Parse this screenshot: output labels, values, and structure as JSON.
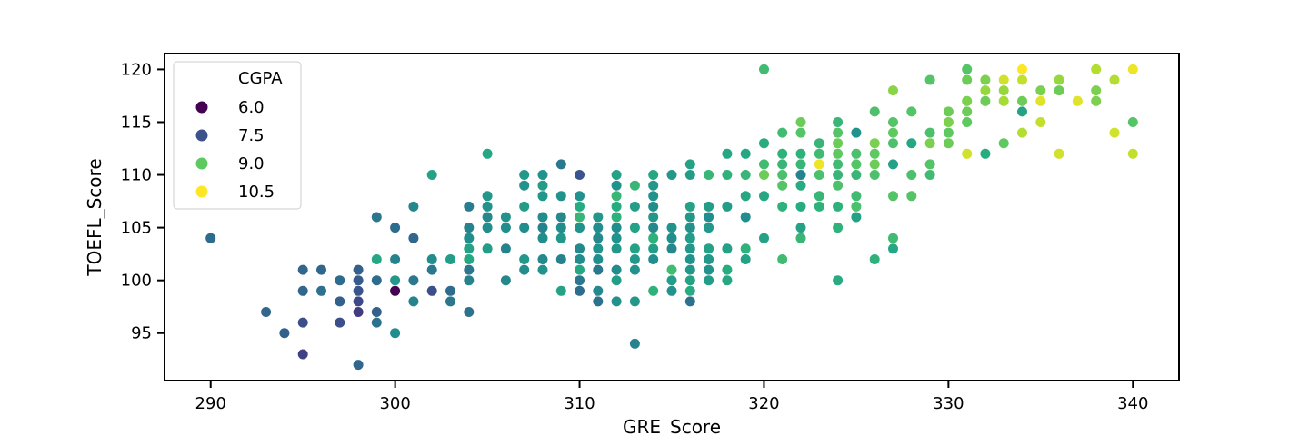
{
  "chart_data": {
    "type": "scatter",
    "xlabel": "GRE_Score",
    "ylabel": "TOEFL_Score",
    "xlim": [
      287.5,
      342.5
    ],
    "ylim": [
      90.5,
      121.5
    ],
    "xticks": [
      "290",
      "300",
      "310",
      "320",
      "330",
      "340"
    ],
    "yticks": [
      "95",
      "100",
      "105",
      "110",
      "115",
      "120"
    ],
    "hue": "CGPA",
    "colormap": "viridis",
    "hue_range": [
      6.0,
      10.5
    ],
    "legend": {
      "title": "CGPA",
      "placement": "upper-left",
      "entries": [
        {
          "label": "6.0",
          "value": 6.0,
          "color": "#440154"
        },
        {
          "label": "7.5",
          "value": 7.5,
          "color": "#3b528b"
        },
        {
          "label": "9.0",
          "value": 9.0,
          "color": "#5ec962"
        },
        {
          "label": "10.5",
          "value": 10.5,
          "color": "#fde725"
        }
      ]
    },
    "points": [
      [
        290,
        104,
        7.6
      ],
      [
        293,
        97,
        7.5
      ],
      [
        294,
        95,
        7.4
      ],
      [
        295,
        101,
        7.5
      ],
      [
        295,
        99,
        7.5
      ],
      [
        295,
        96,
        7.1
      ],
      [
        295,
        93,
        6.9
      ],
      [
        296,
        101,
        7.5
      ],
      [
        296,
        99,
        7.7
      ],
      [
        297,
        100,
        7.6
      ],
      [
        297,
        98,
        7.4
      ],
      [
        297,
        96,
        7.1
      ],
      [
        298,
        101,
        7.4
      ],
      [
        298,
        100,
        7.3
      ],
      [
        298,
        99,
        7.2
      ],
      [
        298,
        98,
        7.0
      ],
      [
        298,
        97,
        6.8
      ],
      [
        298,
        92,
        7.5
      ],
      [
        299,
        106,
        7.8
      ],
      [
        299,
        102,
        8.7
      ],
      [
        299,
        100,
        7.6
      ],
      [
        299,
        97,
        7.4
      ],
      [
        299,
        96,
        7.7
      ],
      [
        300,
        105,
        7.6
      ],
      [
        300,
        102,
        8.0
      ],
      [
        300,
        100,
        8.4
      ],
      [
        300,
        99,
        6.0
      ],
      [
        300,
        95,
        8.2
      ],
      [
        301,
        107,
        8.1
      ],
      [
        301,
        104,
        7.5
      ],
      [
        301,
        100,
        7.8
      ],
      [
        301,
        98,
        8.0
      ],
      [
        302,
        110,
        8.6
      ],
      [
        302,
        102,
        8.2
      ],
      [
        302,
        101,
        7.8
      ],
      [
        302,
        99,
        7.1
      ],
      [
        303,
        102,
        8.5
      ],
      [
        303,
        99,
        7.6
      ],
      [
        303,
        98,
        7.8
      ],
      [
        304,
        107,
        7.9
      ],
      [
        304,
        105,
        8.0
      ],
      [
        304,
        104,
        8.2
      ],
      [
        304,
        103,
        8.6
      ],
      [
        304,
        102,
        8.7
      ],
      [
        304,
        101,
        7.8
      ],
      [
        304,
        100,
        8.0
      ],
      [
        304,
        97,
        7.7
      ],
      [
        305,
        112,
        8.7
      ],
      [
        305,
        108,
        8.4
      ],
      [
        305,
        107,
        8.3
      ],
      [
        305,
        106,
        8.1
      ],
      [
        305,
        105,
        8.2
      ],
      [
        305,
        103,
        8.5
      ],
      [
        306,
        106,
        8.3
      ],
      [
        306,
        105,
        8.2
      ],
      [
        306,
        103,
        8.0
      ],
      [
        306,
        100,
        8.1
      ],
      [
        307,
        110,
        8.4
      ],
      [
        307,
        109,
        8.3
      ],
      [
        307,
        107,
        8.5
      ],
      [
        307,
        105,
        8.2
      ],
      [
        307,
        102,
        8.4
      ],
      [
        307,
        101,
        8.2
      ],
      [
        308,
        110,
        8.3
      ],
      [
        308,
        109,
        8.5
      ],
      [
        308,
        108,
        8.4
      ],
      [
        308,
        106,
        8.2
      ],
      [
        308,
        105,
        8.0
      ],
      [
        308,
        104,
        8.2
      ],
      [
        308,
        102,
        8.1
      ],
      [
        308,
        101,
        8.3
      ],
      [
        309,
        111,
        7.8
      ],
      [
        309,
        108,
        8.3
      ],
      [
        309,
        106,
        8.1
      ],
      [
        309,
        105,
        8.2
      ],
      [
        309,
        104,
        8.4
      ],
      [
        309,
        102,
        8.0
      ],
      [
        309,
        99,
        8.6
      ],
      [
        310,
        110,
        7.2
      ],
      [
        310,
        108,
        8.3
      ],
      [
        310,
        107,
        8.8
      ],
      [
        310,
        106,
        9.0
      ],
      [
        310,
        105,
        8.3
      ],
      [
        310,
        103,
        8.1
      ],
      [
        310,
        102,
        8.2
      ],
      [
        310,
        101,
        8.7
      ],
      [
        310,
        100,
        7.8
      ],
      [
        310,
        99,
        7.6
      ],
      [
        311,
        106,
        8.4
      ],
      [
        311,
        105,
        8.2
      ],
      [
        311,
        104,
        8.1
      ],
      [
        311,
        103,
        8.3
      ],
      [
        311,
        102,
        8.2
      ],
      [
        311,
        101,
        7.8
      ],
      [
        311,
        99,
        8.1
      ],
      [
        311,
        98,
        7.7
      ],
      [
        312,
        110,
        8.6
      ],
      [
        312,
        109,
        8.3
      ],
      [
        312,
        108,
        9.0
      ],
      [
        312,
        107,
        8.8
      ],
      [
        312,
        106,
        8.9
      ],
      [
        312,
        105,
        8.2
      ],
      [
        312,
        104,
        8.3
      ],
      [
        312,
        103,
        8.4
      ],
      [
        312,
        101,
        8.2
      ],
      [
        312,
        100,
        8.5
      ],
      [
        312,
        98,
        8.3
      ],
      [
        313,
        109,
        9.0
      ],
      [
        313,
        107,
        8.5
      ],
      [
        313,
        105,
        8.6
      ],
      [
        313,
        103,
        8.6
      ],
      [
        313,
        102,
        8.4
      ],
      [
        313,
        101,
        8.3
      ],
      [
        313,
        98,
        8.4
      ],
      [
        313,
        94,
        8.0
      ],
      [
        314,
        110,
        8.7
      ],
      [
        314,
        109,
        8.4
      ],
      [
        314,
        108,
        8.3
      ],
      [
        314,
        107,
        8.2
      ],
      [
        314,
        106,
        8.4
      ],
      [
        314,
        105,
        8.1
      ],
      [
        314,
        104,
        8.9
      ],
      [
        314,
        103,
        8.5
      ],
      [
        314,
        102,
        8.2
      ],
      [
        314,
        99,
        8.9
      ],
      [
        315,
        110,
        8.4
      ],
      [
        315,
        105,
        8.3
      ],
      [
        315,
        104,
        8.2
      ],
      [
        315,
        103,
        8.1
      ],
      [
        315,
        101,
        9.1
      ],
      [
        315,
        100,
        8.5
      ],
      [
        315,
        99,
        8.3
      ],
      [
        316,
        111,
        8.6
      ],
      [
        316,
        110,
        8.5
      ],
      [
        316,
        107,
        8.6
      ],
      [
        316,
        106,
        8.4
      ],
      [
        316,
        105,
        8.3
      ],
      [
        316,
        104,
        8.5
      ],
      [
        316,
        103,
        8.4
      ],
      [
        316,
        102,
        8.3
      ],
      [
        316,
        101,
        8.4
      ],
      [
        316,
        100,
        8.6
      ],
      [
        316,
        99,
        8.8
      ],
      [
        316,
        98,
        7.7
      ],
      [
        317,
        110,
        9.0
      ],
      [
        317,
        107,
        8.5
      ],
      [
        317,
        106,
        8.2
      ],
      [
        317,
        105,
        8.4
      ],
      [
        317,
        103,
        8.6
      ],
      [
        317,
        102,
        8.4
      ],
      [
        317,
        101,
        8.3
      ],
      [
        317,
        100,
        8.5
      ],
      [
        318,
        112,
        8.7
      ],
      [
        318,
        110,
        8.9
      ],
      [
        318,
        107,
        8.5
      ],
      [
        318,
        103,
        8.6
      ],
      [
        318,
        101,
        8.8
      ],
      [
        318,
        100,
        8.7
      ],
      [
        319,
        112,
        8.7
      ],
      [
        319,
        110,
        9.0
      ],
      [
        319,
        108,
        8.7
      ],
      [
        319,
        106,
        8.2
      ],
      [
        319,
        103,
        8.9
      ],
      [
        319,
        102,
        8.6
      ],
      [
        320,
        120,
        9.1
      ],
      [
        320,
        113,
        8.8
      ],
      [
        320,
        111,
        9.1
      ],
      [
        320,
        110,
        9.5
      ],
      [
        320,
        108,
        8.7
      ],
      [
        320,
        104,
        8.6
      ],
      [
        321,
        114,
        9.1
      ],
      [
        321,
        112,
        8.9
      ],
      [
        321,
        111,
        9.0
      ],
      [
        321,
        110,
        9.2
      ],
      [
        321,
        109,
        9.3
      ],
      [
        321,
        107,
        8.9
      ],
      [
        321,
        102,
        9.1
      ],
      [
        322,
        115,
        9.5
      ],
      [
        322,
        114,
        9.3
      ],
      [
        322,
        112,
        8.9
      ],
      [
        322,
        111,
        9.0
      ],
      [
        322,
        110,
        8.0
      ],
      [
        322,
        109,
        8.8
      ],
      [
        322,
        107,
        8.8
      ],
      [
        322,
        105,
        8.6
      ],
      [
        322,
        104,
        9.0
      ],
      [
        323,
        113,
        9.0
      ],
      [
        323,
        112,
        9.1
      ],
      [
        323,
        111,
        10.4
      ],
      [
        323,
        110,
        9.2
      ],
      [
        323,
        108,
        9.0
      ],
      [
        323,
        107,
        8.9
      ],
      [
        324,
        115,
        9.0
      ],
      [
        324,
        114,
        9.3
      ],
      [
        324,
        113,
        9.5
      ],
      [
        324,
        112,
        9.4
      ],
      [
        324,
        111,
        9.1
      ],
      [
        324,
        110,
        9.0
      ],
      [
        324,
        109,
        9.2
      ],
      [
        324,
        107,
        8.9
      ],
      [
        324,
        105,
        8.9
      ],
      [
        324,
        100,
        8.8
      ],
      [
        325,
        114,
        8.3
      ],
      [
        325,
        112,
        9.2
      ],
      [
        325,
        111,
        9.3
      ],
      [
        325,
        110,
        9.0
      ],
      [
        325,
        108,
        9.1
      ],
      [
        325,
        107,
        9.2
      ],
      [
        325,
        106,
        8.6
      ],
      [
        326,
        116,
        9.2
      ],
      [
        326,
        113,
        9.6
      ],
      [
        326,
        112,
        9.4
      ],
      [
        326,
        111,
        9.5
      ],
      [
        326,
        110,
        9.2
      ],
      [
        326,
        102,
        8.9
      ],
      [
        327,
        118,
        9.7
      ],
      [
        327,
        115,
        9.3
      ],
      [
        327,
        114,
        9.4
      ],
      [
        327,
        113,
        9.2
      ],
      [
        327,
        111,
        8.6
      ],
      [
        327,
        108,
        9.3
      ],
      [
        327,
        104,
        9.1
      ],
      [
        327,
        103,
        8.7
      ],
      [
        328,
        116,
        9.3
      ],
      [
        328,
        113,
        8.7
      ],
      [
        328,
        110,
        9.2
      ],
      [
        328,
        108,
        9.3
      ],
      [
        329,
        119,
        9.3
      ],
      [
        329,
        114,
        9.2
      ],
      [
        329,
        113,
        9.6
      ],
      [
        329,
        111,
        9.3
      ],
      [
        329,
        110,
        9.1
      ],
      [
        330,
        116,
        9.5
      ],
      [
        330,
        115,
        9.6
      ],
      [
        330,
        114,
        9.4
      ],
      [
        330,
        113,
        9.5
      ],
      [
        331,
        120,
        9.3
      ],
      [
        331,
        119,
        9.5
      ],
      [
        331,
        117,
        9.6
      ],
      [
        331,
        116,
        9.5
      ],
      [
        331,
        115,
        9.4
      ],
      [
        331,
        112,
        10.2
      ],
      [
        332,
        119,
        9.6
      ],
      [
        332,
        118,
        9.8
      ],
      [
        332,
        117,
        9.5
      ],
      [
        332,
        112,
        8.8
      ],
      [
        333,
        119,
        10.2
      ],
      [
        333,
        118,
        9.8
      ],
      [
        333,
        117,
        9.9
      ],
      [
        333,
        113,
        9.4
      ],
      [
        334,
        120,
        10.5
      ],
      [
        334,
        119,
        10.1
      ],
      [
        334,
        117,
        9.5
      ],
      [
        334,
        116,
        8.6
      ],
      [
        334,
        114,
        10.0
      ],
      [
        335,
        118,
        9.6
      ],
      [
        335,
        117,
        10.3
      ],
      [
        335,
        115,
        10.1
      ],
      [
        336,
        119,
        9.8
      ],
      [
        336,
        118,
        9.5
      ],
      [
        336,
        112,
        10.2
      ],
      [
        337,
        117,
        10.3
      ],
      [
        338,
        120,
        10.0
      ],
      [
        338,
        118,
        9.6
      ],
      [
        338,
        117,
        9.6
      ],
      [
        339,
        119,
        10.0
      ],
      [
        339,
        114,
        10.2
      ],
      [
        340,
        120,
        10.4
      ],
      [
        340,
        115,
        9.3
      ],
      [
        340,
        112,
        10.1
      ]
    ]
  }
}
